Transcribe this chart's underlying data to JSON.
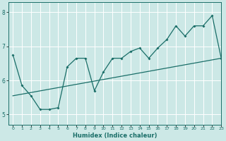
{
  "xlabel": "Humidex (Indice chaleur)",
  "bg_color": "#cce8e6",
  "line_color": "#1a6e68",
  "grid_color": "#ffffff",
  "xlim": [
    -0.5,
    23
  ],
  "ylim": [
    4.7,
    8.3
  ],
  "yticks": [
    5,
    6,
    7,
    8
  ],
  "xticks": [
    0,
    1,
    2,
    3,
    4,
    5,
    6,
    7,
    8,
    9,
    10,
    11,
    12,
    13,
    14,
    15,
    16,
    17,
    18,
    19,
    20,
    21,
    22,
    23
  ],
  "line1_x": [
    0,
    1,
    2,
    3,
    4,
    5,
    6,
    7,
    8,
    9,
    10,
    11,
    12,
    13,
    14,
    15,
    16,
    17,
    18,
    19,
    20,
    21,
    22,
    23
  ],
  "line1_y": [
    6.75,
    5.85,
    5.55,
    5.15,
    5.15,
    5.2,
    6.4,
    6.65,
    6.65,
    5.7,
    6.25,
    6.65,
    6.65,
    6.85,
    6.95,
    6.65,
    6.95,
    7.2,
    7.6,
    7.3,
    7.6,
    7.6,
    7.9,
    6.65
  ],
  "line2_x": [
    0,
    23
  ],
  "line2_y": [
    5.55,
    6.65
  ]
}
